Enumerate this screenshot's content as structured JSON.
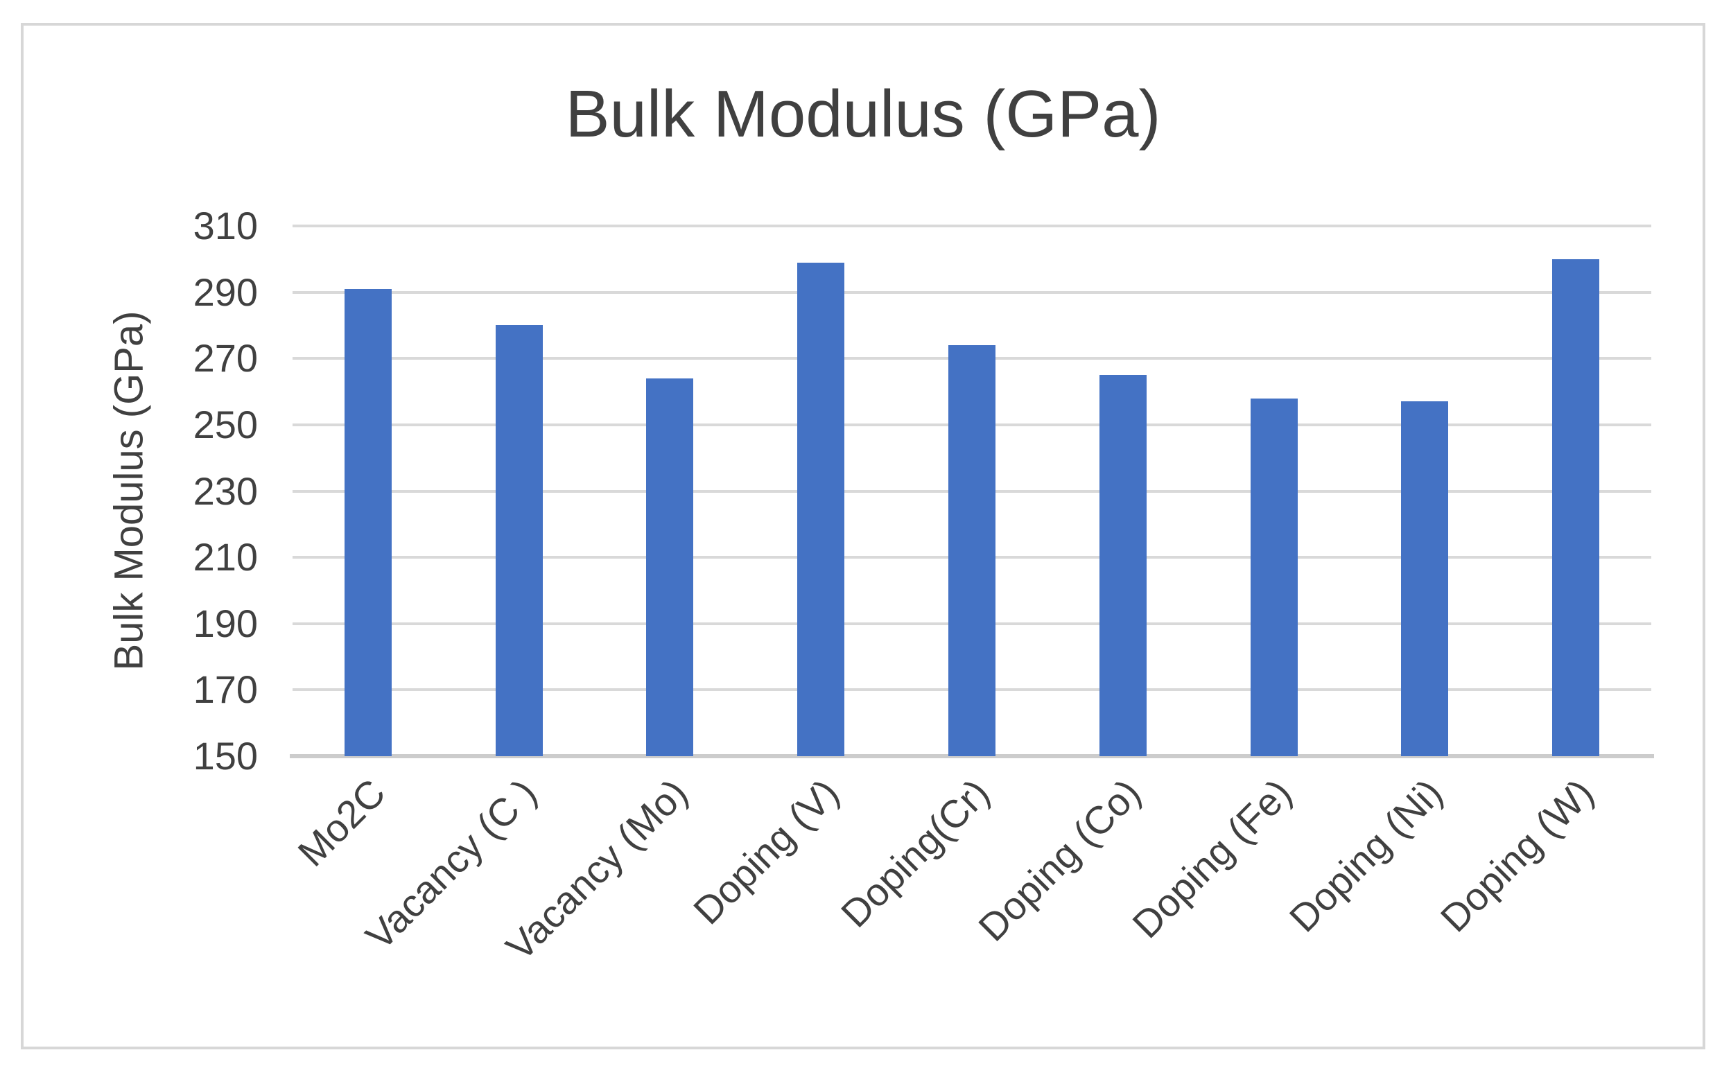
{
  "chart_data": {
    "type": "bar",
    "title": "Bulk Modulus (GPa)",
    "xlabel": "",
    "ylabel": "Bulk Modulus (GPa)",
    "categories": [
      "Mo2C",
      "Vacancy (C )",
      "Vacancy (Mo)",
      "Doping (V)",
      "Doping(Cr)",
      "Doping (Co)",
      "Doping (Fe)",
      "Doping (Ni)",
      "Doping (W)"
    ],
    "values": [
      291,
      280,
      264,
      299,
      274,
      265,
      258,
      257,
      300
    ],
    "ylim": [
      150,
      310
    ],
    "yticks": [
      150,
      170,
      190,
      210,
      230,
      250,
      270,
      290,
      310
    ],
    "grid": true,
    "legend_position": "none",
    "bar_color": "#4472C4",
    "gridline_color": "#D9D9D9",
    "axis_line_color": "#CCCCCC",
    "text_color": "#404040",
    "frame_border_color": "#D7D7D7",
    "background_color": "#FFFFFF"
  }
}
